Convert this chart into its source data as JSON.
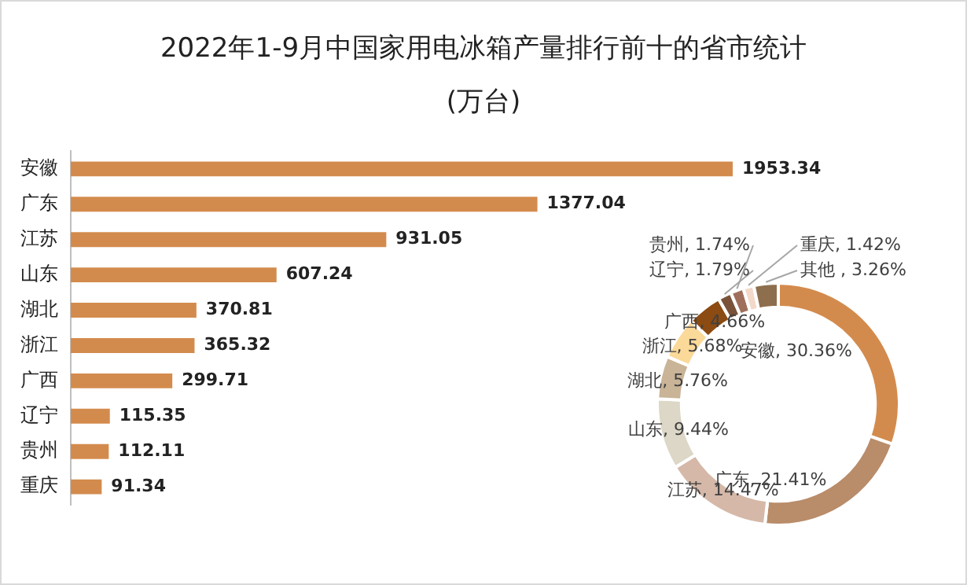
{
  "chart_data": [
    {
      "type": "bar",
      "title": "2022年1-9月中国家用电冰箱产量排行前十的省市统计",
      "subtitle": "(万台)",
      "orientation": "horizontal",
      "categories": [
        "安徽",
        "广东",
        "江苏",
        "山东",
        "湖北",
        "浙江",
        "广西",
        "辽宁",
        "贵州",
        "重庆"
      ],
      "values": [
        1953.34,
        1377.04,
        931.05,
        607.24,
        370.81,
        365.32,
        299.71,
        115.35,
        112.11,
        91.34
      ],
      "color": "#d38b4d",
      "data_labels": true,
      "tick_labels": "y"
    },
    {
      "type": "donut",
      "categories": [
        "安徽",
        "广东",
        "江苏",
        "山东",
        "湖北",
        "浙江",
        "广西",
        "辽宁",
        "贵州",
        "重庆",
        "其他 "
      ],
      "values": [
        30.36,
        21.41,
        14.47,
        9.44,
        5.76,
        5.68,
        4.66,
        1.79,
        1.74,
        1.42,
        3.26
      ],
      "value_labels": [
        "30.36%",
        "21.41%",
        "14.47%",
        "9.44%",
        "5.76%",
        "5.68%",
        "4.66%",
        "1.79%",
        "1.74%",
        "1.42%",
        "3.26%"
      ],
      "colors": [
        "#d38b4d",
        "#b98c6a",
        "#d5b8a8",
        "#dcd7c6",
        "#c9b497",
        "#fbd999",
        "#8b4b12",
        "#7a5239",
        "#a06f5c",
        "#f3d9c9",
        "#8d6e4d"
      ],
      "legend": false
    }
  ]
}
